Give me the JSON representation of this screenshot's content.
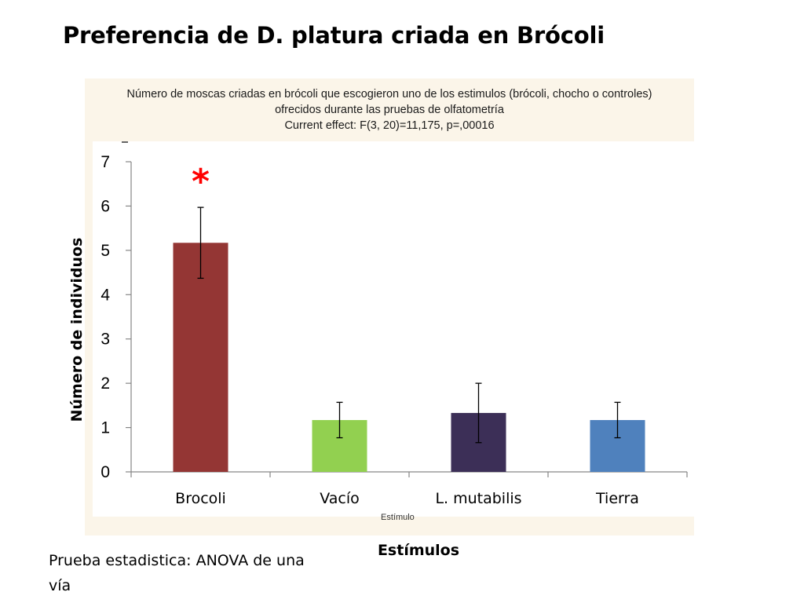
{
  "slide": {
    "title": "Preferencia de D. platura criada en Brócoli",
    "note": "Prueba estadistica: ANOVA de una vía"
  },
  "panel": {
    "header_line1": "Número de moscas criadas en brócoli que escogieron uno de los estimulos (brócoli, chocho o controles)",
    "header_line2": "ofrecidos durante las pruebas de olfatometría",
    "header_line3": "Current effect: F(3, 20)=11,175, p=,00016",
    "old_xlabel": "Estímulo"
  },
  "chart_data": {
    "type": "bar",
    "categories": [
      "Brocoli",
      "Vacío",
      "L. mutabilis",
      "Tierra"
    ],
    "values": [
      5.17,
      1.17,
      1.33,
      1.17
    ],
    "errors": [
      0.8,
      0.4,
      0.67,
      0.4
    ],
    "colors": [
      "#943634",
      "#92d050",
      "#3c2f57",
      "#4f81bd"
    ],
    "significance": [
      "*",
      "",
      "",
      ""
    ],
    "xlabel": "Estímulos",
    "ylabel": "Número de individuos",
    "ylim": [
      0,
      7
    ],
    "yticks": [
      "0",
      "1",
      "2",
      "3",
      "4",
      "5",
      "6",
      "7"
    ],
    "grid": false
  }
}
